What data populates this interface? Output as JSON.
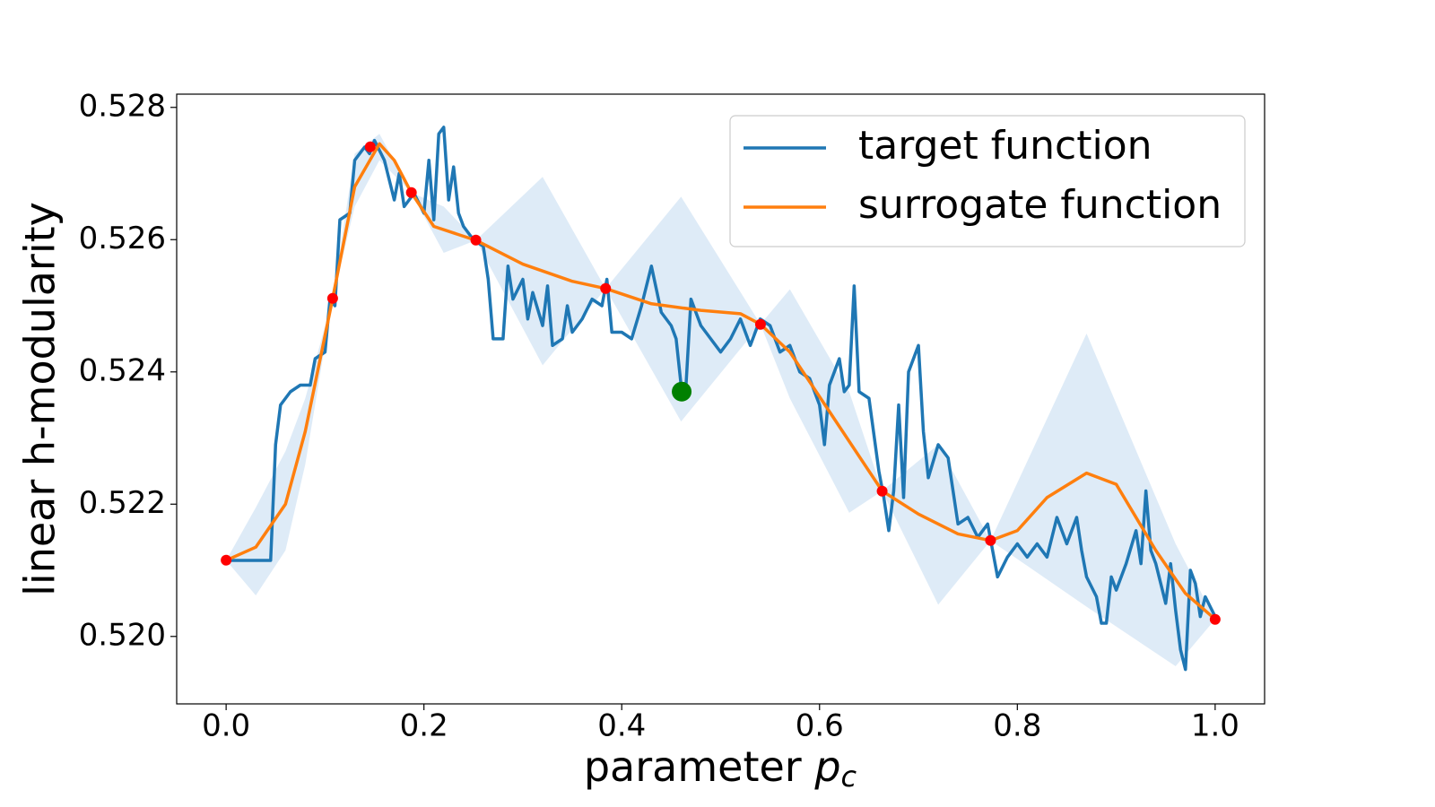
{
  "chart_data": {
    "type": "line",
    "ylabel": "linear h-modularity",
    "xlabel": "parameter",
    "xlabel_symbol": "p",
    "xlabel_subscript": "c",
    "xlim": [
      -0.05,
      1.05
    ],
    "ylim": [
      0.51898,
      0.5282
    ],
    "xticks": [
      {
        "value": 0,
        "label": "0.0"
      },
      0.2,
      0.4,
      0.6,
      0.8,
      {
        "value": 1,
        "label": "1.0"
      }
    ],
    "yticks": [
      {
        "value": 0.52,
        "label": "0.520"
      },
      0.522,
      0.524,
      0.526,
      0.528
    ],
    "legend": "upper right",
    "band": {
      "color": "#deebf7",
      "x": [
        0,
        0.03,
        0.06,
        0.08,
        0.1077,
        0.13,
        0.155,
        0.1873,
        0.22,
        0.2525,
        0.32,
        0.3837,
        0.46,
        0.5403,
        0.57,
        0.63,
        0.6633,
        0.72,
        0.7729,
        0.87,
        0.96,
        1.0
      ],
      "upper": [
        0.52115,
        0.52195,
        0.5228,
        0.5236,
        0.52511,
        0.5273,
        0.5276,
        0.52671,
        0.5265,
        0.52599,
        0.52695,
        0.52526,
        0.52665,
        0.52472,
        0.52525,
        0.5237,
        0.5222,
        0.5229,
        0.52145,
        0.52458,
        0.5214,
        0.52026
      ],
      "lower": [
        0.52115,
        0.52062,
        0.5213,
        0.5226,
        0.52511,
        0.5265,
        0.5272,
        0.52671,
        0.5258,
        0.52599,
        0.5241,
        0.52526,
        0.52325,
        0.52472,
        0.5236,
        0.52187,
        0.5222,
        0.52048,
        0.52145,
        0.52045,
        0.51955,
        0.52026
      ]
    },
    "series": [
      {
        "name": "target function",
        "color": "#1f77b4",
        "x": [
          0,
          0.045,
          0.05,
          0.055,
          0.065,
          0.075,
          0.085,
          0.09,
          0.1,
          0.105,
          0.11,
          0.115,
          0.125,
          0.13,
          0.14,
          0.145,
          0.15,
          0.16,
          0.17,
          0.175,
          0.18,
          0.19,
          0.2,
          0.205,
          0.21,
          0.215,
          0.22,
          0.225,
          0.23,
          0.235,
          0.24,
          0.245,
          0.25,
          0.26,
          0.265,
          0.27,
          0.28,
          0.285,
          0.29,
          0.3,
          0.305,
          0.31,
          0.32,
          0.325,
          0.33,
          0.34,
          0.345,
          0.35,
          0.36,
          0.37,
          0.38,
          0.385,
          0.39,
          0.4,
          0.41,
          0.42,
          0.43,
          0.44,
          0.45,
          0.455,
          0.46,
          0.465,
          0.47,
          0.48,
          0.49,
          0.5,
          0.51,
          0.52,
          0.53,
          0.54,
          0.55,
          0.56,
          0.57,
          0.58,
          0.59,
          0.6,
          0.605,
          0.61,
          0.62,
          0.625,
          0.63,
          0.635,
          0.64,
          0.65,
          0.66,
          0.665,
          0.67,
          0.675,
          0.68,
          0.685,
          0.69,
          0.7,
          0.705,
          0.71,
          0.72,
          0.73,
          0.74,
          0.75,
          0.76,
          0.77,
          0.775,
          0.78,
          0.79,
          0.8,
          0.81,
          0.82,
          0.83,
          0.84,
          0.85,
          0.86,
          0.865,
          0.87,
          0.88,
          0.885,
          0.89,
          0.895,
          0.9,
          0.91,
          0.92,
          0.925,
          0.93,
          0.935,
          0.94,
          0.95,
          0.955,
          0.96,
          0.965,
          0.97,
          0.975,
          0.98,
          0.985,
          0.99,
          1.0
        ],
        "values": [
          0.52115,
          0.52115,
          0.5229,
          0.5235,
          0.5237,
          0.5238,
          0.5238,
          0.5242,
          0.5243,
          0.5251,
          0.525,
          0.5263,
          0.5264,
          0.5272,
          0.5274,
          0.5273,
          0.5275,
          0.5272,
          0.5266,
          0.527,
          0.5265,
          0.5267,
          0.5264,
          0.5272,
          0.5263,
          0.5276,
          0.5277,
          0.5266,
          0.5271,
          0.5264,
          0.5262,
          0.5261,
          0.526,
          0.5259,
          0.5254,
          0.5245,
          0.5245,
          0.5256,
          0.5251,
          0.5254,
          0.5248,
          0.5252,
          0.5247,
          0.5253,
          0.5244,
          0.5245,
          0.525,
          0.5246,
          0.5248,
          0.5251,
          0.525,
          0.5254,
          0.5246,
          0.5246,
          0.5245,
          0.525,
          0.5256,
          0.5249,
          0.5247,
          0.5245,
          0.5238,
          0.5238,
          0.5251,
          0.5247,
          0.5245,
          0.5243,
          0.5245,
          0.5248,
          0.5244,
          0.5248,
          0.5247,
          0.5243,
          0.5244,
          0.524,
          0.5239,
          0.5235,
          0.5229,
          0.5238,
          0.5242,
          0.5237,
          0.5238,
          0.5253,
          0.5237,
          0.5236,
          0.5225,
          0.5221,
          0.5216,
          0.5222,
          0.5235,
          0.5221,
          0.524,
          0.5244,
          0.5231,
          0.5224,
          0.5229,
          0.5227,
          0.5217,
          0.5218,
          0.5215,
          0.5217,
          0.5213,
          0.5209,
          0.5212,
          0.5214,
          0.5212,
          0.5214,
          0.5212,
          0.5218,
          0.5214,
          0.5218,
          0.5213,
          0.5209,
          0.5206,
          0.5202,
          0.5202,
          0.5209,
          0.5207,
          0.5211,
          0.5216,
          0.5211,
          0.5222,
          0.5213,
          0.5211,
          0.5205,
          0.5211,
          0.5204,
          0.5198,
          0.5195,
          0.521,
          0.5208,
          0.5203,
          0.5206,
          0.5203
        ]
      },
      {
        "name": "surrogate function",
        "color": "#ff7f0e",
        "x": [
          0,
          0.03,
          0.06,
          0.08,
          0.1077,
          0.13,
          0.155,
          0.17,
          0.1873,
          0.21,
          0.2525,
          0.3,
          0.35,
          0.3837,
          0.43,
          0.48,
          0.52,
          0.5403,
          0.57,
          0.61,
          0.6633,
          0.7,
          0.74,
          0.7729,
          0.8,
          0.83,
          0.87,
          0.9,
          0.94,
          0.97,
          1.0
        ],
        "values": [
          0.52115,
          0.52135,
          0.522,
          0.5231,
          0.52511,
          0.5268,
          0.52745,
          0.5272,
          0.52671,
          0.5262,
          0.52599,
          0.52563,
          0.52537,
          0.52526,
          0.52503,
          0.52493,
          0.52488,
          0.52472,
          0.5243,
          0.5234,
          0.5222,
          0.52185,
          0.52155,
          0.52145,
          0.5216,
          0.5221,
          0.52247,
          0.5223,
          0.5213,
          0.52065,
          0.52026
        ]
      }
    ],
    "samples": {
      "color": "#ff0000",
      "x": [
        0,
        0.1077,
        0.1457,
        0.1873,
        0.2525,
        0.3837,
        0.5403,
        0.6633,
        0.7729,
        1.0
      ],
      "values": [
        0.521153,
        0.525112,
        0.527403,
        0.526712,
        0.525993,
        0.525261,
        0.524719,
        0.522197,
        0.521451,
        0.520258
      ]
    },
    "optimum": {
      "color": "#008000",
      "x": 0.4606,
      "value": 0.523702
    }
  }
}
